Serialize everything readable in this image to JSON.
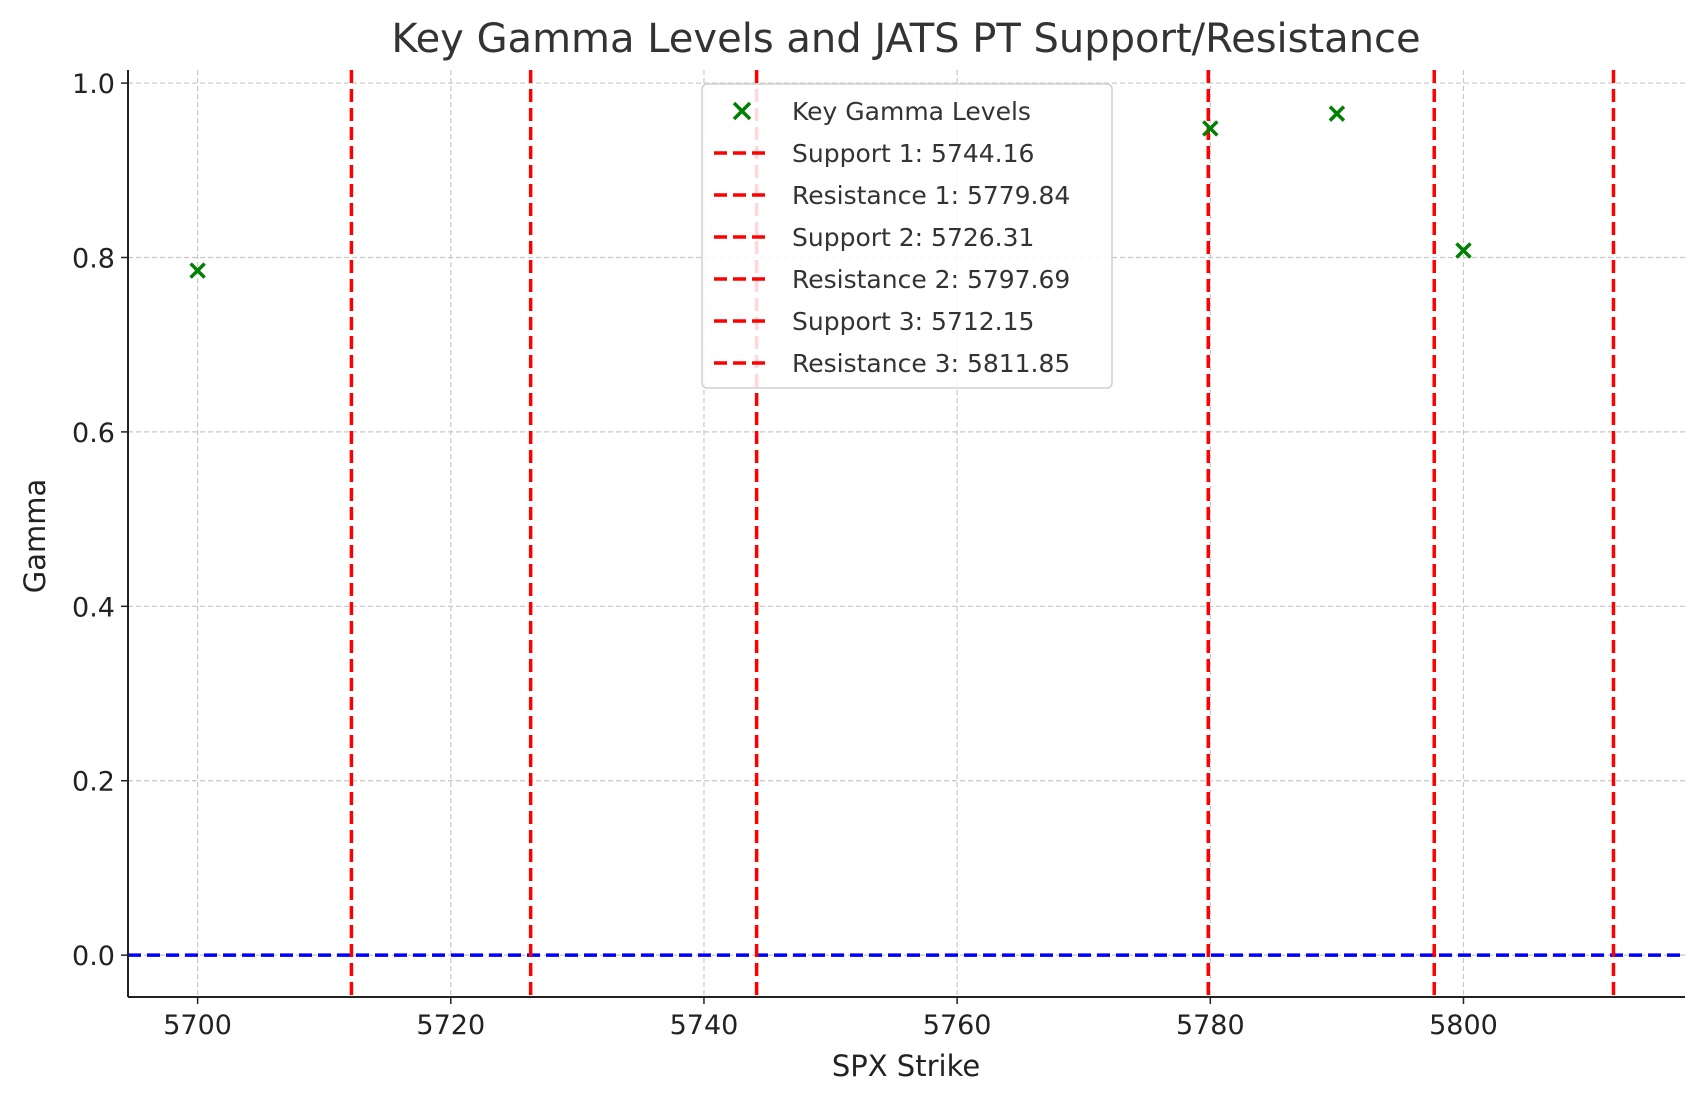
{
  "chart_data": {
    "type": "scatter",
    "title": "Key Gamma Levels and JATS PT Support/Resistance",
    "xlabel": "SPX Strike",
    "ylabel": "Gamma",
    "xlim": [
      5694.5,
      5817.5
    ],
    "ylim": [
      -0.048,
      1.015
    ],
    "x_ticks": [
      5700,
      5720,
      5740,
      5760,
      5780,
      5800
    ],
    "x_tick_labels": [
      "5700",
      "5720",
      "5740",
      "5760",
      "5780",
      "5800"
    ],
    "y_ticks": [
      0.0,
      0.2,
      0.4,
      0.6,
      0.8,
      1.0
    ],
    "y_tick_labels": [
      "0.0",
      "0.2",
      "0.4",
      "0.6",
      "0.8",
      "1.0"
    ],
    "grid": true,
    "legend_position": "top-center",
    "series": [
      {
        "name": "Key Gamma Levels",
        "marker": "x",
        "color": "#008000",
        "points": [
          {
            "x": 5700,
            "y": 0.785
          },
          {
            "x": 5780,
            "y": 0.948
          },
          {
            "x": 5790,
            "y": 0.965
          },
          {
            "x": 5800,
            "y": 0.808
          }
        ]
      }
    ],
    "vertical_lines": [
      {
        "label": "Support 1: 5744.16",
        "x": 5744.16,
        "color": "#ff0000"
      },
      {
        "label": "Resistance 1: 5779.84",
        "x": 5779.84,
        "color": "#ff0000"
      },
      {
        "label": "Support 2: 5726.31",
        "x": 5726.31,
        "color": "#ff0000"
      },
      {
        "label": "Resistance 2: 5797.69",
        "x": 5797.69,
        "color": "#ff0000"
      },
      {
        "label": "Support 3: 5712.15",
        "x": 5712.15,
        "color": "#ff0000"
      },
      {
        "label": "Resistance 3: 5811.85",
        "x": 5811.85,
        "color": "#ff0000"
      }
    ],
    "horizontal_lines": [
      {
        "y": 0.0,
        "color": "#0000ff"
      }
    ]
  }
}
